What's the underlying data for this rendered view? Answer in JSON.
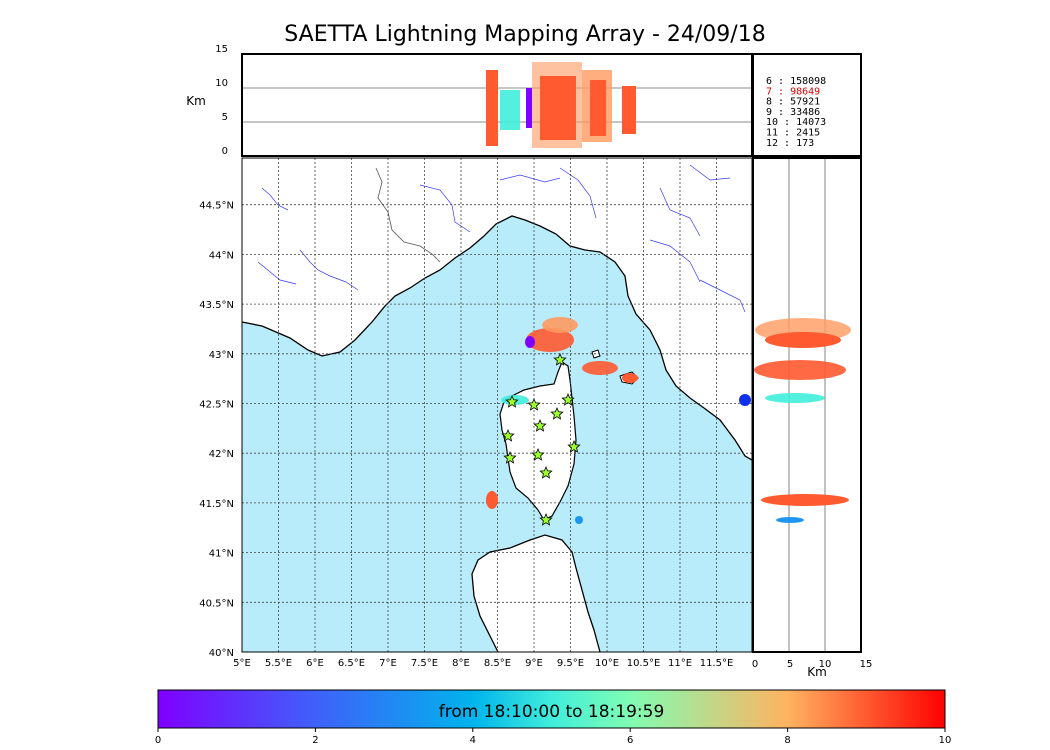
{
  "title": "SAETTA Lightning Mapping Array - 24/09/18",
  "colorbar": {
    "label": "from 18:10:00 to 18:19:59",
    "ticks": [
      "0",
      "2",
      "4",
      "6",
      "8",
      "10"
    ]
  },
  "height_panel": {
    "ylabel": "Km",
    "yticks": [
      "0",
      "5",
      "10",
      "15"
    ]
  },
  "side_panel": {
    "xlabel": "Km",
    "xticks": [
      "0",
      "5",
      "10",
      "15"
    ]
  },
  "map": {
    "lon_ticks": [
      "5°E",
      "5.5°E",
      "6°E",
      "6.5°E",
      "7°E",
      "7.5°E",
      "8°E",
      "8.5°E",
      "9°E",
      "9.5°E",
      "10°E",
      "10.5°E",
      "11°E",
      "11.5°E"
    ],
    "lat_ticks": [
      "40°N",
      "40.5°N",
      "41°N",
      "41.5°N",
      "42°N",
      "42.5°N",
      "43°N",
      "43.5°N",
      "44°N",
      "44.5°N"
    ],
    "sea_color": "#b8ecfb",
    "station_color": "#9cff2e"
  },
  "legend": [
    {
      "label": "6  :   158098",
      "color": "#000000"
    },
    {
      "label": "7  :    98649",
      "color": "#e00000"
    },
    {
      "label": "8  :    57921",
      "color": "#000000"
    },
    {
      "label": "9  :    33486",
      "color": "#000000"
    },
    {
      "label": "10 :    14073",
      "color": "#000000"
    },
    {
      "label": "11 :     2415",
      "color": "#000000"
    },
    {
      "label": "12 :      173",
      "color": "#000000"
    }
  ]
}
